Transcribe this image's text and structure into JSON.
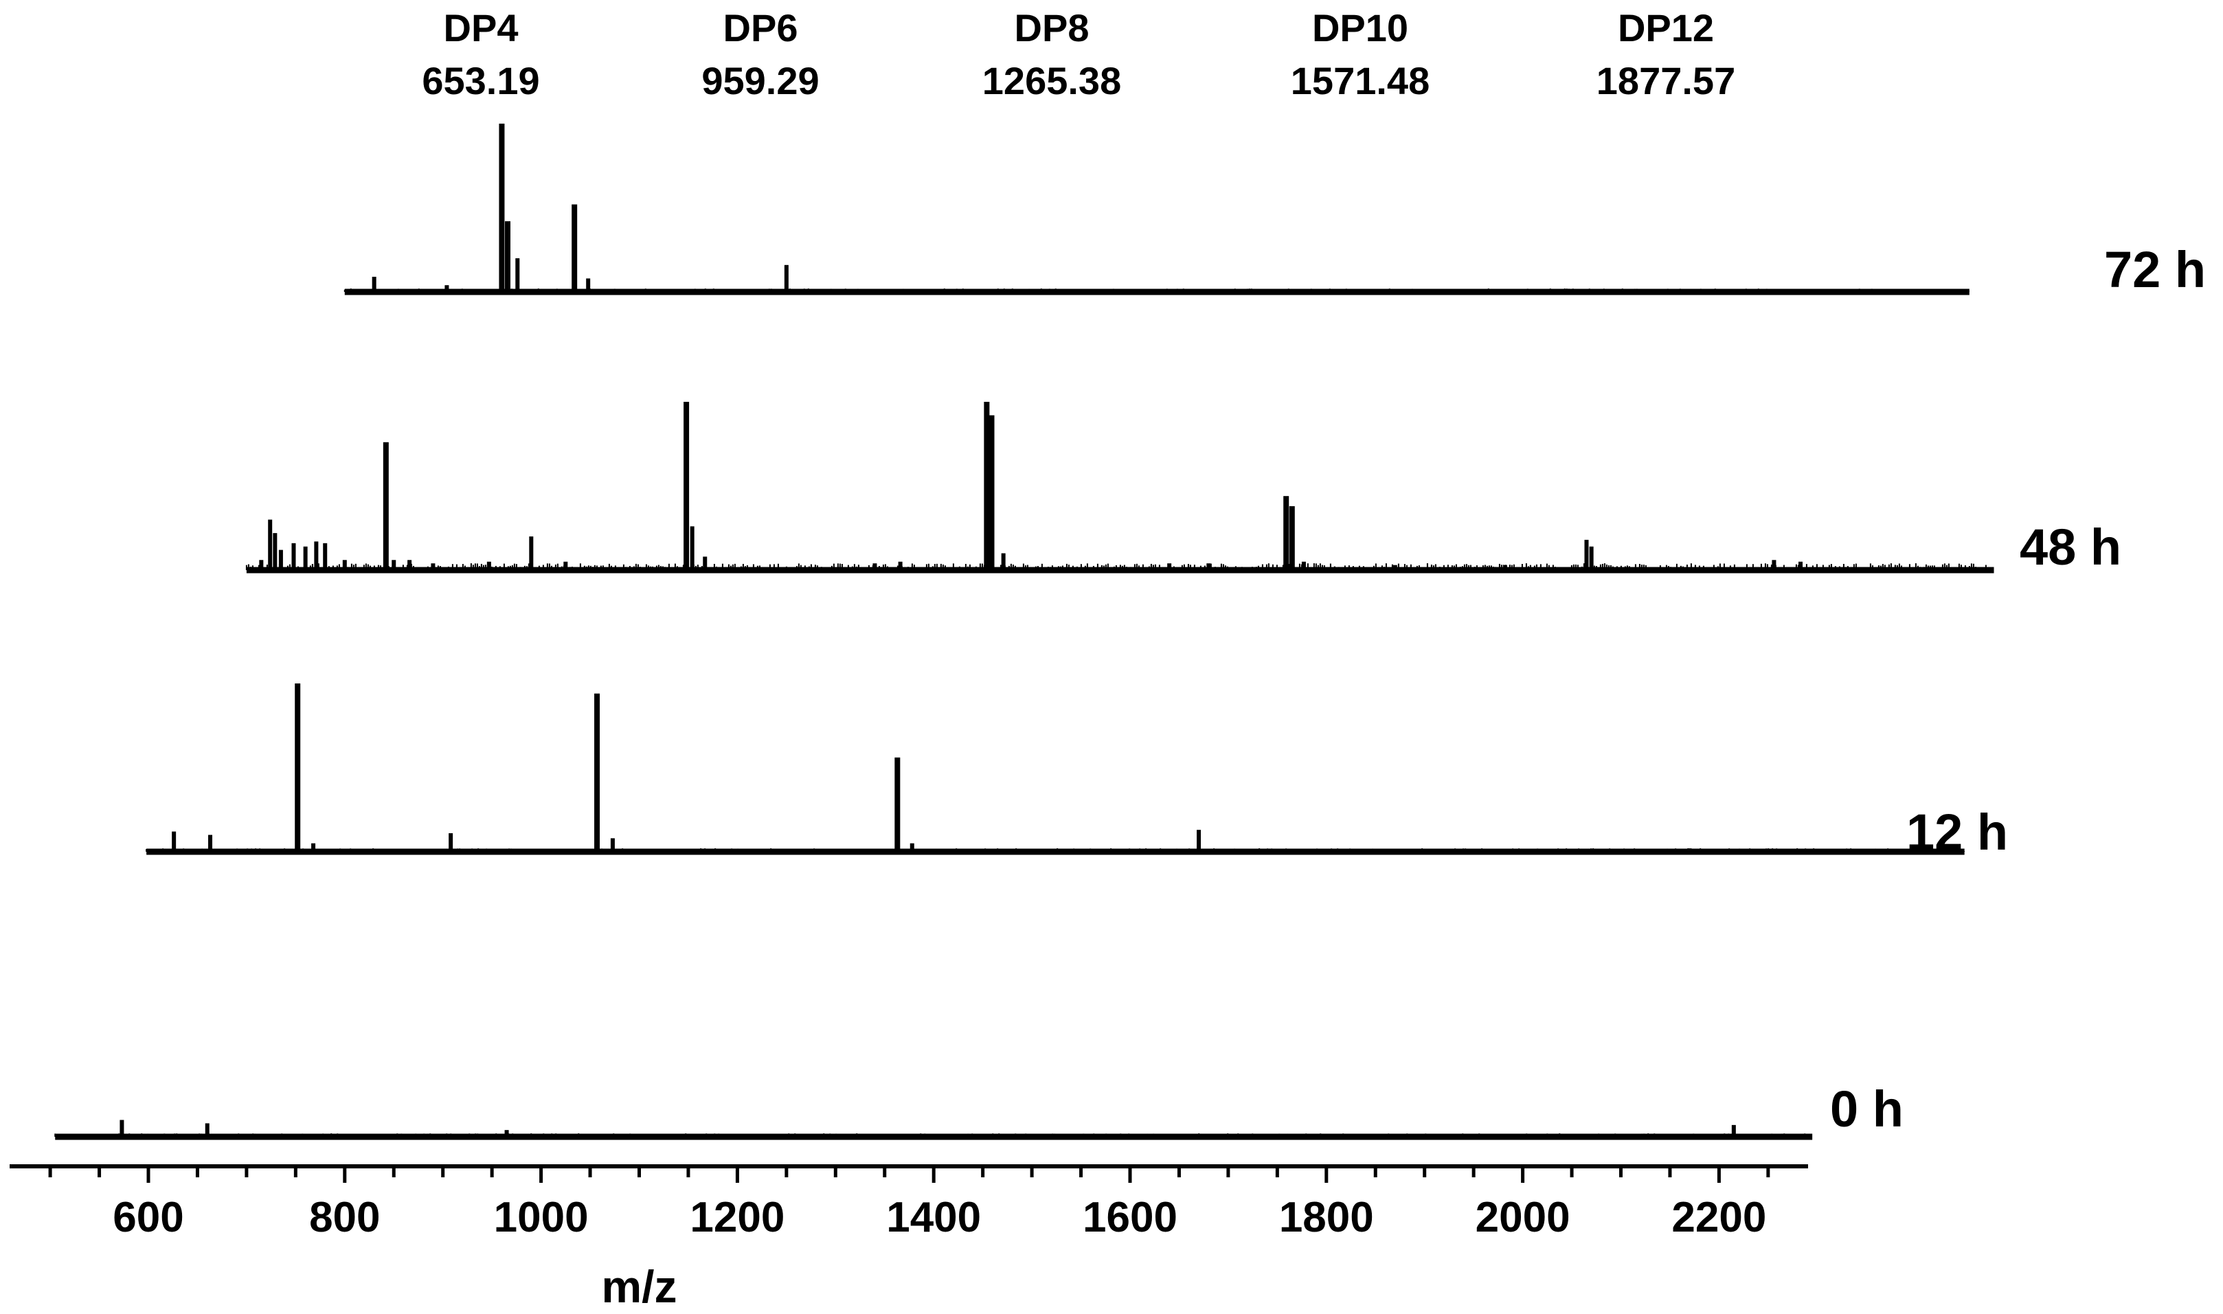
{
  "chart_data": {
    "type": "line",
    "subtype": "stacked mass spectra (offset traces)",
    "title": "",
    "xlabel": "m/z",
    "ylabel": "",
    "xlim": [
      490,
      2300
    ],
    "x_ticks": [
      600,
      800,
      1000,
      1200,
      1400,
      1600,
      1800,
      2000,
      2200
    ],
    "grid": false,
    "annotations": [
      {
        "name": "DP4",
        "mz": "653.19"
      },
      {
        "name": "DP6",
        "mz": "959.29"
      },
      {
        "name": "DP8",
        "mz": "1265.38"
      },
      {
        "name": "DP10",
        "mz": "1571.48"
      },
      {
        "name": "DP12",
        "mz": "1877.57"
      }
    ],
    "series": [
      {
        "name": "72 h",
        "x_range": [
          800,
          2455
        ],
        "peaks": [
          {
            "x": 830,
            "y": 0.09
          },
          {
            "x": 904,
            "y": 0.04
          },
          {
            "x": 960,
            "y": 1.0
          },
          {
            "x": 966,
            "y": 0.42
          },
          {
            "x": 976,
            "y": 0.2
          },
          {
            "x": 1034,
            "y": 0.52
          },
          {
            "x": 1048,
            "y": 0.08
          },
          {
            "x": 1250,
            "y": 0.16
          }
        ]
      },
      {
        "name": "48 h",
        "x_range": [
          700,
          2480
        ],
        "peaks": [
          {
            "x": 715,
            "y": 0.06
          },
          {
            "x": 724,
            "y": 0.3
          },
          {
            "x": 729,
            "y": 0.22
          },
          {
            "x": 735,
            "y": 0.12
          },
          {
            "x": 748,
            "y": 0.16
          },
          {
            "x": 760,
            "y": 0.14
          },
          {
            "x": 771,
            "y": 0.17
          },
          {
            "x": 780,
            "y": 0.16
          },
          {
            "x": 800,
            "y": 0.06
          },
          {
            "x": 842,
            "y": 0.76
          },
          {
            "x": 850,
            "y": 0.06
          },
          {
            "x": 866,
            "y": 0.06
          },
          {
            "x": 890,
            "y": 0.04
          },
          {
            "x": 947,
            "y": 0.05
          },
          {
            "x": 990,
            "y": 0.2
          },
          {
            "x": 1025,
            "y": 0.05
          },
          {
            "x": 1148,
            "y": 1.0
          },
          {
            "x": 1154,
            "y": 0.26
          },
          {
            "x": 1167,
            "y": 0.08
          },
          {
            "x": 1340,
            "y": 0.04
          },
          {
            "x": 1366,
            "y": 0.05
          },
          {
            "x": 1454,
            "y": 1.0
          },
          {
            "x": 1459,
            "y": 0.92
          },
          {
            "x": 1471,
            "y": 0.1
          },
          {
            "x": 1640,
            "y": 0.04
          },
          {
            "x": 1680,
            "y": 0.04
          },
          {
            "x": 1759,
            "y": 0.44
          },
          {
            "x": 1765,
            "y": 0.38
          },
          {
            "x": 1777,
            "y": 0.05
          },
          {
            "x": 1870,
            "y": 0.03
          },
          {
            "x": 1982,
            "y": 0.03
          },
          {
            "x": 2065,
            "y": 0.18
          },
          {
            "x": 2070,
            "y": 0.14
          },
          {
            "x": 2256,
            "y": 0.06
          },
          {
            "x": 2283,
            "y": 0.05
          }
        ]
      },
      {
        "name": "12 h",
        "x_range": [
          598,
          2450
        ],
        "peaks": [
          {
            "x": 626,
            "y": 0.12
          },
          {
            "x": 663,
            "y": 0.1
          },
          {
            "x": 752,
            "y": 1.0
          },
          {
            "x": 768,
            "y": 0.05
          },
          {
            "x": 908,
            "y": 0.11
          },
          {
            "x": 1057,
            "y": 0.94
          },
          {
            "x": 1073,
            "y": 0.08
          },
          {
            "x": 1363,
            "y": 0.56
          },
          {
            "x": 1378,
            "y": 0.05
          },
          {
            "x": 1670,
            "y": 0.13
          },
          {
            "x": 2170,
            "y": 0.02
          }
        ]
      },
      {
        "name": "0 h",
        "x_range": [
          505,
          2295
        ],
        "peaks": [
          {
            "x": 573,
            "y": 0.1
          },
          {
            "x": 660,
            "y": 0.08
          },
          {
            "x": 965,
            "y": 0.04
          },
          {
            "x": 2215,
            "y": 0.07
          }
        ]
      }
    ]
  }
}
